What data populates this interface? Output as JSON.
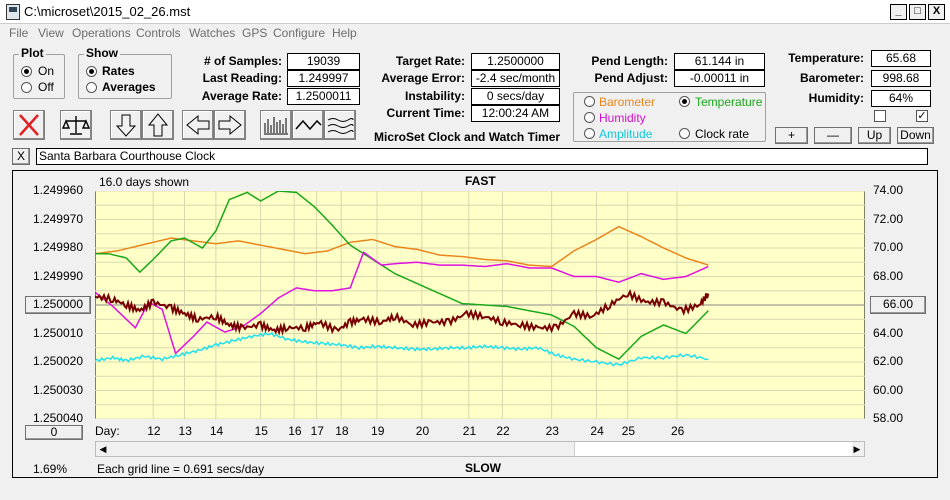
{
  "window": {
    "title": "C:\\microset\\2015_02_26.mst",
    "min": "_",
    "max": "□",
    "close": "X"
  },
  "menu": [
    "File",
    "View",
    "Operations",
    "Controls",
    "Watches",
    "GPS",
    "Configure",
    "Help"
  ],
  "plot": {
    "title": "Plot",
    "on": "On",
    "off": "Off"
  },
  "show": {
    "title": "Show",
    "rates": "Rates",
    "averages": "Averages"
  },
  "stats": {
    "samples_label": "# of Samples:",
    "samples": "19039",
    "last_label": "Last Reading:",
    "last": "1.249997",
    "avg_label": "Average Rate:",
    "avg": "1.2500011",
    "target_label": "Target Rate:",
    "target": "1.2500000",
    "avgerr_label": "Average Error:",
    "avgerr": "-2.4 sec/month",
    "instab_label": "Instability:",
    "instab": "0 secs/day",
    "time_label": "Current Time:",
    "time": "12:00:24 AM",
    "pendlen_label": "Pend Length:",
    "pendlen": "61.144 in",
    "pendadj_label": "Pend Adjust:",
    "pendadj": "-0.00011 in",
    "temp_label": "Temperature:",
    "temp": "65.68",
    "baro_label": "Barometer:",
    "baro": "998.68",
    "hum_label": "Humidity:",
    "hum": "64%"
  },
  "app_caption": "MicroSet Clock and Watch Timer",
  "sensor_options": {
    "barometer": "Barometer",
    "temperature": "Temperature",
    "humidity": "Humidity",
    "amplitude": "Amplitude",
    "clock_rate": "Clock rate"
  },
  "small_buttons": {
    "plus": "+",
    "minus": "—",
    "up": "Up",
    "down": "Down"
  },
  "description_value": "Santa Barbara Courthouse Clock",
  "clear_btn": "X",
  "colors": {
    "bg": "#ffffc8",
    "barometer": "#e8861c",
    "temperature": "#1aa81a",
    "humidity": "#e010e0",
    "amplitude": "#20e0ee",
    "rate": "#780000"
  },
  "chart_data": {
    "type": "line",
    "title": "FAST",
    "bottom_title": "SLOW",
    "days_shown": "16.0 days shown",
    "grid_note": "Each grid line = 0.691 secs/day",
    "percent": "1.69%",
    "day_label": "Day:",
    "center_left": "1.250000",
    "center_right": "66.00",
    "zero_btn": "0",
    "y_left_ticks": [
      "1.249960",
      "1.249970",
      "1.249980",
      "1.249990",
      "1.250000",
      "1.250010",
      "1.250020",
      "1.250030",
      "1.250040"
    ],
    "y_right_ticks": [
      "74.00",
      "72.00",
      "70.00",
      "68.00",
      "66.00",
      "64.00",
      "62.00",
      "60.00",
      "58.00"
    ],
    "ylim_left": [
      1.24996,
      1.25004
    ],
    "ylim_right": [
      58,
      74
    ],
    "x_days": [
      "12",
      "13",
      "14",
      "15",
      "16",
      "17",
      "18",
      "19",
      "20",
      "21",
      "22",
      "23",
      "24",
      "25",
      "26"
    ],
    "x_day_positions": [
      11.6,
      12.3,
      13.0,
      14.0,
      14.75,
      15.25,
      15.8,
      16.6,
      17.6,
      18.65,
      19.4,
      20.5,
      21.5,
      22.2,
      23.3
    ],
    "xlim": [
      10.3,
      27.5
    ],
    "series": [
      {
        "name": "Barometer",
        "key": "barometer",
        "x": [
          10.3,
          10.8,
          11.2,
          11.6,
          12,
          12.5,
          13,
          13.5,
          14,
          14.5,
          15,
          15.5,
          16,
          16.5,
          17,
          17.5,
          18,
          18.5,
          19,
          19.5,
          20,
          20.5,
          21,
          21.5,
          22,
          22.5,
          23,
          23.5,
          24
        ],
        "y": [
          69.6,
          69.8,
          70.1,
          70.4,
          70.7,
          70.5,
          70.3,
          70.5,
          70.2,
          69.9,
          69.6,
          69.8,
          70.4,
          70.6,
          70.1,
          69.9,
          69.5,
          69.4,
          69.2,
          69.1,
          68.8,
          68.7,
          69.8,
          70.6,
          71.5,
          70.8,
          70.0,
          69.3,
          68.8
        ]
      },
      {
        "name": "Temperature",
        "key": "temperature",
        "x": [
          10.3,
          10.6,
          11,
          11.3,
          11.6,
          12,
          12.3,
          12.7,
          13,
          13.3,
          13.7,
          14,
          14.4,
          14.8,
          15.2,
          15.6,
          16,
          16.5,
          17,
          17.5,
          18,
          18.5,
          19,
          19.5,
          20,
          20.5,
          21,
          21.5,
          22,
          22.5,
          23,
          23.5,
          24
        ],
        "y": [
          69.6,
          69.6,
          69.3,
          68.3,
          69.2,
          70.5,
          70.7,
          70.0,
          71.2,
          73.4,
          73.9,
          73.3,
          74.0,
          73.9,
          72.9,
          71.6,
          70.2,
          69.2,
          68.2,
          67.5,
          66.8,
          66.1,
          66.0,
          65.9,
          65.6,
          65.3,
          64.5,
          63.0,
          62.2,
          63.8,
          64.6,
          64.0,
          65.6
        ]
      },
      {
        "name": "Humidity",
        "key": "humidity",
        "x": [
          10.3,
          10.7,
          11.2,
          11.5,
          11.8,
          12.1,
          12.5,
          12.8,
          13.2,
          13.6,
          14,
          14.4,
          14.8,
          15.2,
          15.6,
          16,
          16.3,
          16.7,
          17,
          17.5,
          18,
          18.5,
          19,
          19.5,
          20,
          20.5,
          21,
          21.5,
          22,
          22.5,
          23,
          23.5,
          24
        ],
        "y": [
          66.9,
          65.9,
          64.4,
          66.2,
          65.7,
          62.6,
          63.8,
          64.8,
          64.1,
          64.5,
          65.4,
          66.5,
          67.2,
          67.0,
          67.0,
          67.2,
          69.7,
          68.8,
          68.9,
          69.0,
          68.8,
          68.8,
          68.7,
          68.9,
          68.6,
          68.6,
          68.0,
          68.0,
          67.6,
          68.2,
          67.8,
          68.0,
          68.7
        ]
      },
      {
        "name": "Amplitude",
        "key": "amplitude",
        "x": [
          10.3,
          10.7,
          11,
          11.4,
          11.8,
          12.2,
          12.6,
          13,
          13.4,
          13.8,
          14.2,
          14.6,
          15,
          15.4,
          15.8,
          16.2,
          16.6,
          17,
          17.4,
          17.8,
          18.2,
          18.6,
          19,
          19.4,
          19.8,
          20.2,
          20.6,
          21,
          21.5,
          22,
          22.5,
          23,
          23.5,
          24
        ],
        "y": [
          62.1,
          62.3,
          62.1,
          62.4,
          62.2,
          62.5,
          62.8,
          63.2,
          63.5,
          63.8,
          64.0,
          63.6,
          63.4,
          63.3,
          63.2,
          63.0,
          63.1,
          63.0,
          62.9,
          62.9,
          63.0,
          63.0,
          63.1,
          63.0,
          62.9,
          63.0,
          62.5,
          62.2,
          62.0,
          61.8,
          62.3,
          62.3,
          62.5,
          62.2
        ]
      },
      {
        "name": "Clock rate",
        "key": "rate",
        "x": [
          10.3,
          10.7,
          11,
          11.3,
          11.6,
          12,
          12.3,
          12.6,
          13,
          13.3,
          13.6,
          14,
          14.3,
          14.6,
          15,
          15.3,
          15.7,
          16,
          16.3,
          16.7,
          17,
          17.4,
          17.8,
          18.2,
          18.6,
          19,
          19.4,
          19.8,
          20.2,
          20.6,
          21,
          21.4,
          21.8,
          22.2,
          22.6,
          23,
          23.4,
          23.8,
          24
        ],
        "y": [
          1.249997,
          1.249998,
          1.25,
          1.250002,
          1.249999,
          1.250001,
          1.250003,
          1.250005,
          1.250004,
          1.250007,
          1.250008,
          1.250007,
          1.250009,
          1.250008,
          1.250008,
          1.250006,
          1.250009,
          1.250006,
          1.250005,
          1.250006,
          1.250004,
          1.250007,
          1.250006,
          1.250006,
          1.250003,
          1.250004,
          1.250006,
          1.250007,
          1.250008,
          1.250008,
          1.250003,
          1.250004,
          1.25,
          1.249996,
          1.249999,
          1.249999,
          1.250002,
          1.25,
          1.249996
        ]
      }
    ]
  }
}
